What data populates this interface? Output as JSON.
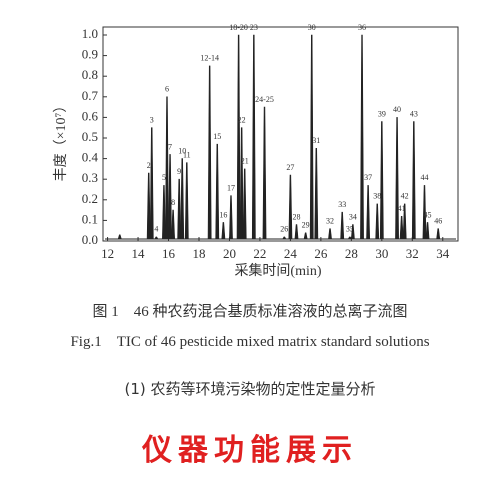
{
  "chart_data": {
    "type": "chromatogram",
    "y_label": "丰度（×10⁷）",
    "x_label": "采集时间(min)",
    "xlim": [
      11.7,
      35
    ],
    "xticks": [
      12,
      14,
      16,
      18,
      20,
      22,
      24,
      26,
      28,
      30,
      32,
      34
    ],
    "ylim": [
      0,
      1.0
    ],
    "yticks": [
      {
        "value": 0,
        "label": "0.0"
      },
      0.1,
      0.2,
      0.3,
      0.4,
      0.5,
      0.6,
      0.7,
      0.8,
      0.9,
      {
        "value": 1,
        "label": "1.0"
      }
    ],
    "color": "#222",
    "labels": [
      null,
      "2",
      "3",
      "4",
      "5",
      "6",
      "7",
      "8",
      "9",
      "10",
      "11",
      "12-14",
      "15",
      "16",
      "17",
      "18-20",
      "22",
      "21",
      "23",
      "24-25",
      "26",
      "27",
      "28",
      "29",
      "30",
      "31",
      "32",
      "35",
      "33",
      "34",
      "36",
      "37",
      "38",
      "39",
      "40",
      "41",
      "42",
      "43",
      "44",
      "45",
      "46"
    ],
    "x": [
      12.8,
      14.7,
      14.9,
      15.2,
      15.7,
      15.9,
      16.1,
      16.3,
      16.7,
      16.9,
      17.2,
      18.7,
      19.2,
      19.6,
      20.1,
      20.6,
      20.8,
      21.0,
      21.6,
      22.3,
      23.6,
      24.0,
      24.4,
      25.0,
      25.4,
      25.7,
      26.6,
      27.9,
      27.4,
      28.1,
      28.7,
      29.1,
      29.7,
      30.0,
      31.0,
      31.3,
      31.5,
      32.1,
      32.8,
      33.0,
      33.7
    ],
    "values": [
      0.03,
      0.33,
      0.55,
      0.02,
      0.27,
      0.7,
      0.42,
      0.15,
      0.3,
      0.4,
      0.38,
      0.85,
      0.47,
      0.09,
      0.22,
      1.0,
      0.55,
      0.35,
      1.0,
      0.65,
      0.02,
      0.32,
      0.08,
      0.04,
      1.0,
      0.45,
      0.06,
      0.02,
      0.14,
      0.08,
      1.0,
      0.27,
      0.18,
      0.58,
      0.6,
      0.12,
      0.18,
      0.58,
      0.27,
      0.09,
      0.06
    ]
  },
  "caption_cn": "图 1　46 种农药混合基质标准溶液的总离子流图",
  "caption_en": "Fig.1　TIC of 46 pesticide mixed matrix standard solutions",
  "subtitle": "(1) 农药等环境污染物的定性定量分析",
  "headline": "仪器功能展示"
}
